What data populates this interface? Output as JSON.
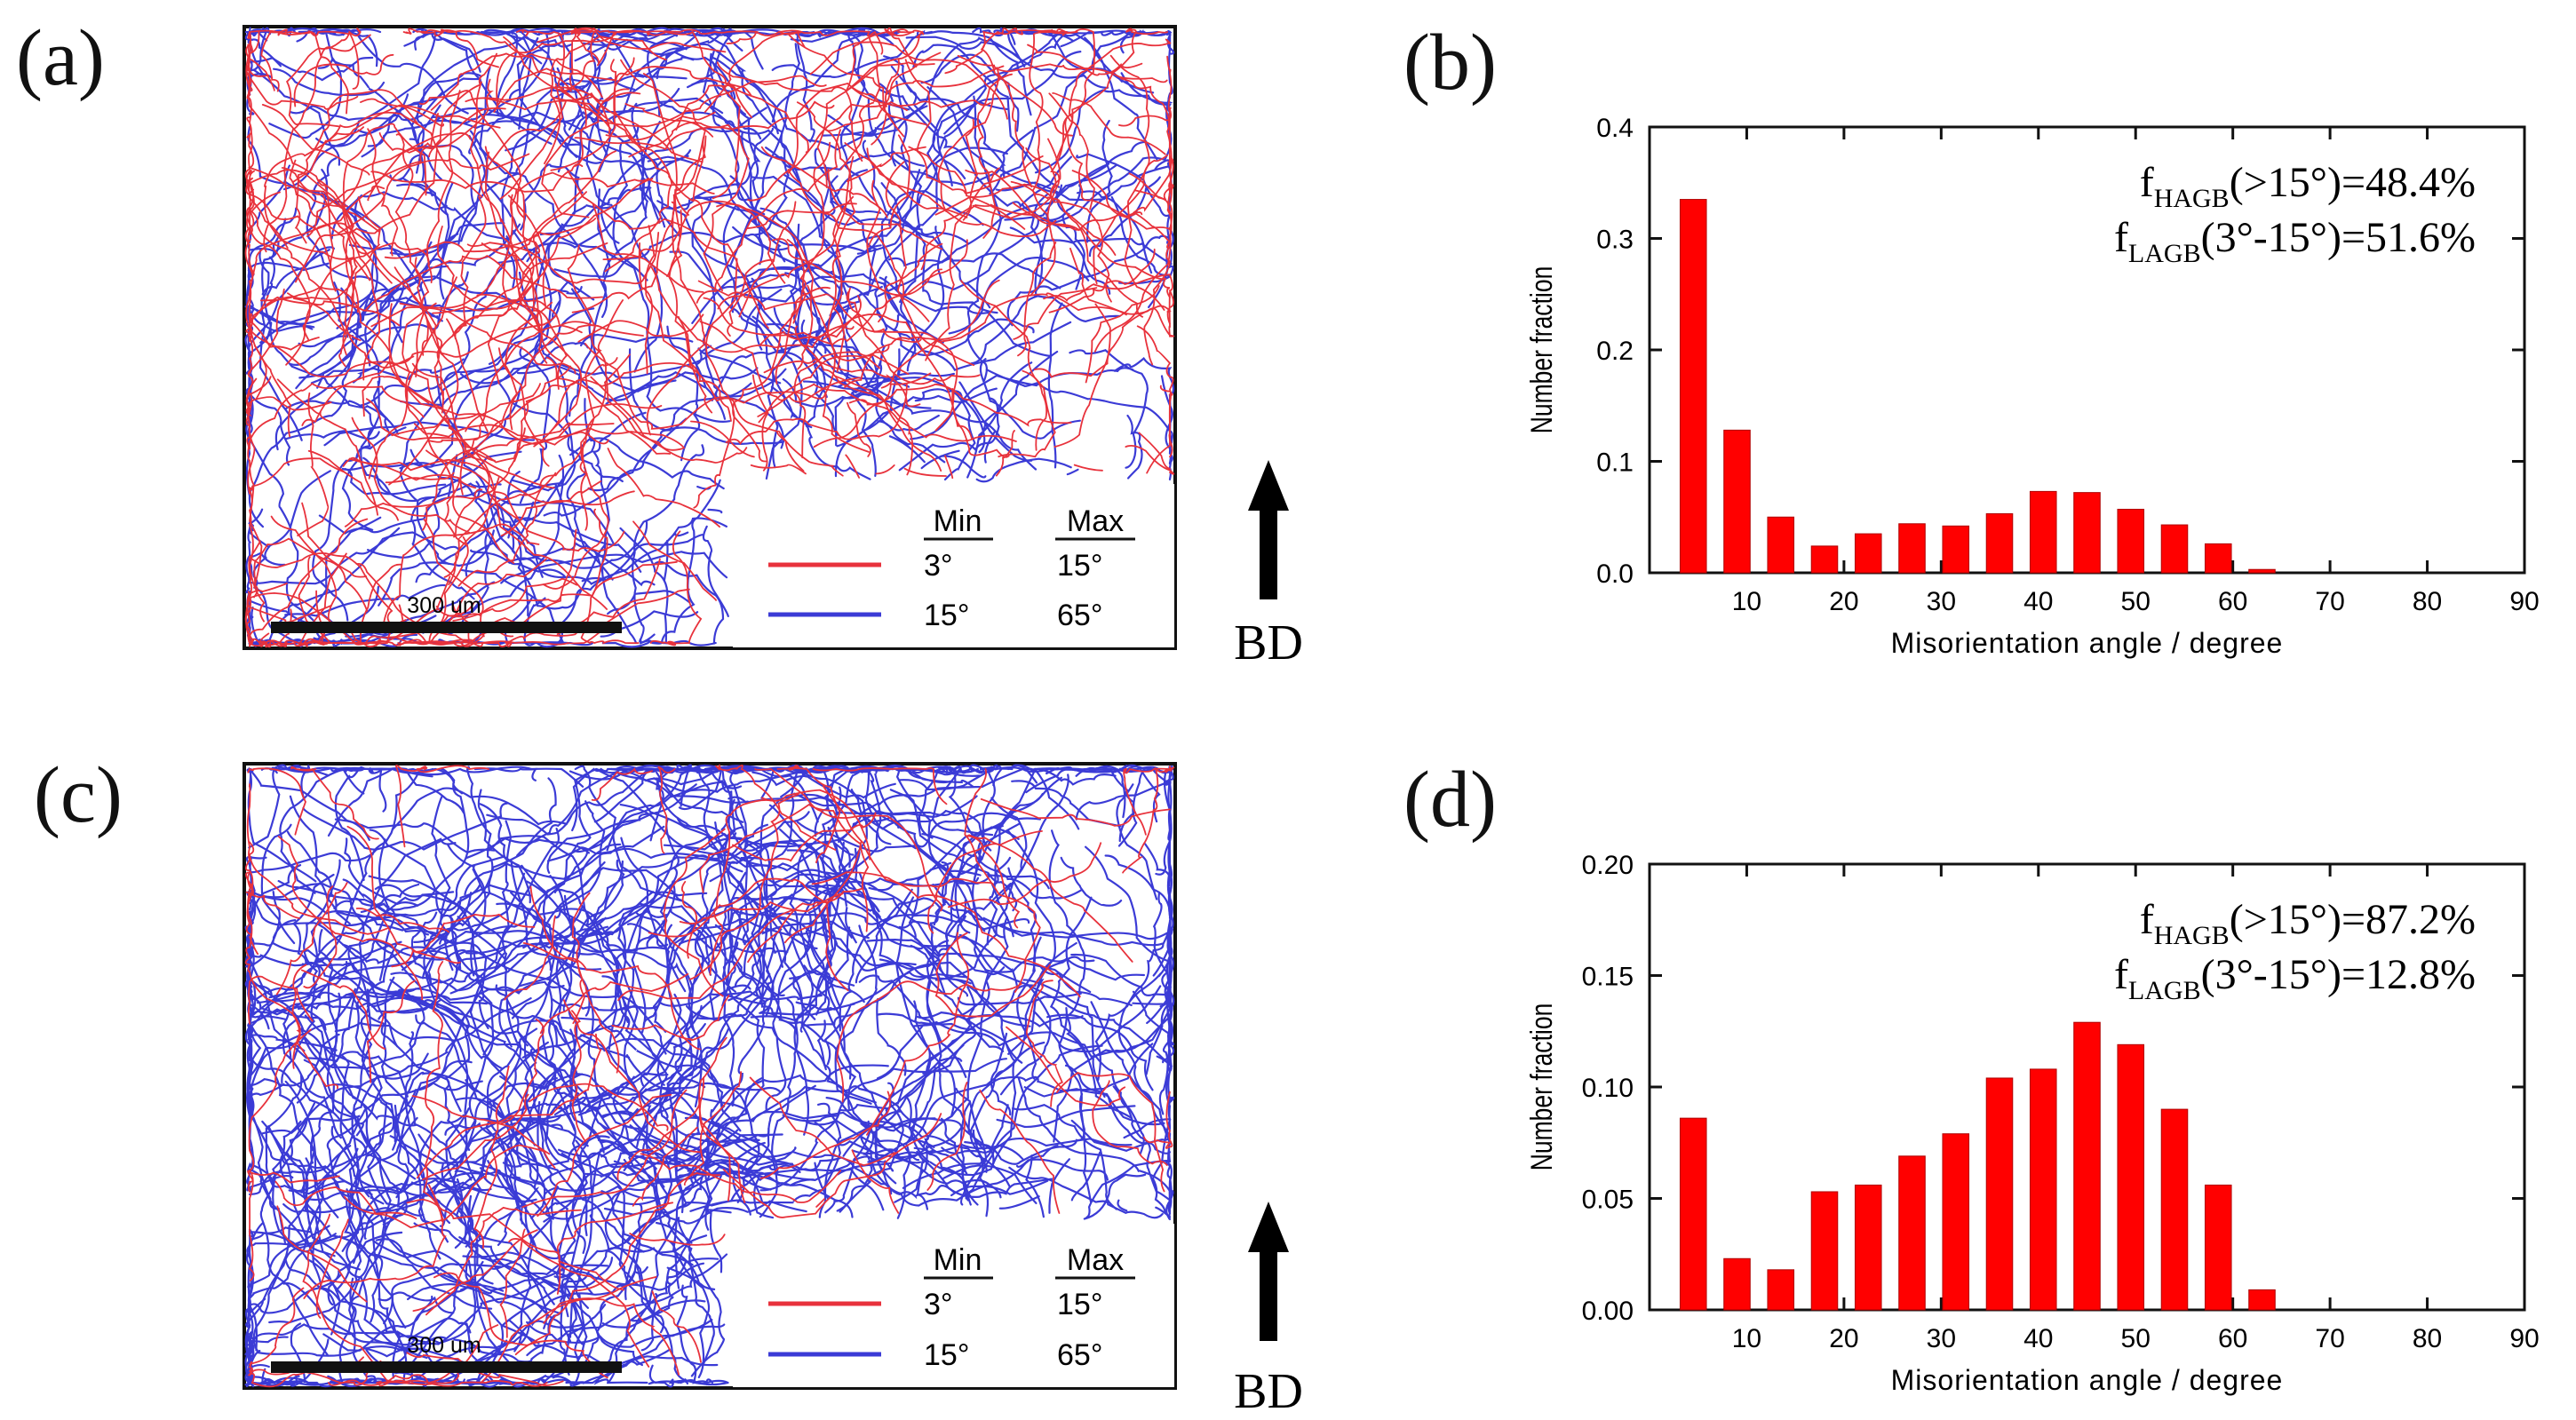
{
  "panels": {
    "a": {
      "label": "(a)",
      "scale_bar": "300 um",
      "legend": {
        "min_header": "Min",
        "max_header": "Max",
        "rows": [
          {
            "min": "3°",
            "max": "15°",
            "color": "#e8323c"
          },
          {
            "min": "15°",
            "max": "65°",
            "color": "#3b3bd6"
          }
        ]
      },
      "bd_label": "BD"
    },
    "b": {
      "label": "(b)"
    },
    "c": {
      "label": "(c)",
      "scale_bar": "300 um",
      "legend": {
        "min_header": "Min",
        "max_header": "Max",
        "rows": [
          {
            "min": "3°",
            "max": "15°",
            "color": "#e8323c"
          },
          {
            "min": "15°",
            "max": "65°",
            "color": "#3b3bd6"
          }
        ]
      },
      "bd_label": "BD"
    },
    "d": {
      "label": "(d)"
    }
  },
  "colors": {
    "bar": "#ff0000",
    "lagb": "#e8323c",
    "hagb": "#3b3bd6"
  },
  "chart_data": [
    {
      "type": "bar",
      "panel": "b",
      "xlabel": "Misorientation angle / degree",
      "ylabel": "Number fraction",
      "xlim": [
        0,
        90
      ],
      "ylim": [
        0,
        0.4
      ],
      "xticks": [
        10,
        20,
        30,
        40,
        50,
        60,
        70,
        80,
        90
      ],
      "yticks": [
        "0.0",
        "0.1",
        "0.2",
        "0.3",
        "0.4"
      ],
      "x": [
        4.5,
        9,
        13.5,
        18,
        22.5,
        27,
        31.5,
        36,
        40.5,
        45,
        49.5,
        54,
        58.5,
        63
      ],
      "values": [
        0.335,
        0.128,
        0.05,
        0.024,
        0.035,
        0.044,
        0.042,
        0.053,
        0.073,
        0.072,
        0.057,
        0.043,
        0.026,
        0.003
      ],
      "annotation": {
        "hagb": {
          "f": "f",
          "sub": "HAGB",
          "text": "(>15°)=48.4%"
        },
        "lagb": {
          "f": "f",
          "sub": "LAGB",
          "text": "(3°-15°)=51.6%"
        }
      }
    },
    {
      "type": "bar",
      "panel": "d",
      "xlabel": "Misorientation angle / degree",
      "ylabel": "Number fraction",
      "xlim": [
        0,
        90
      ],
      "ylim": [
        0,
        0.2
      ],
      "xticks": [
        10,
        20,
        30,
        40,
        50,
        60,
        70,
        80,
        90
      ],
      "yticks": [
        "0.00",
        "0.05",
        "0.10",
        "0.15",
        "0.20"
      ],
      "x": [
        4.5,
        9,
        13.5,
        18,
        22.5,
        27,
        31.5,
        36,
        40.5,
        45,
        49.5,
        54,
        58.5,
        63
      ],
      "values": [
        0.086,
        0.023,
        0.018,
        0.053,
        0.056,
        0.069,
        0.079,
        0.104,
        0.108,
        0.129,
        0.119,
        0.09,
        0.056,
        0.009
      ],
      "annotation": {
        "hagb": {
          "f": "f",
          "sub": "HAGB",
          "text": "(>15°)=87.2%"
        },
        "lagb": {
          "f": "f",
          "sub": "LAGB",
          "text": "(3°-15°)=12.8%"
        }
      }
    }
  ]
}
